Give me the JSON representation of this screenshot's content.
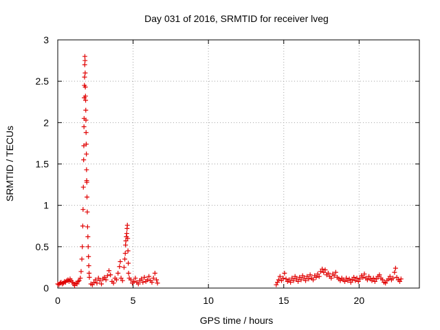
{
  "chart_data": {
    "type": "scatter",
    "title": "Day 031 of 2016, SRMTID for receiver lveg",
    "xlabel": "GPS time / hours",
    "ylabel": "SRMTID / TECUs",
    "xlim": [
      0,
      24
    ],
    "ylim": [
      0,
      3
    ],
    "xticks": [
      0,
      5,
      10,
      15,
      20
    ],
    "yticks": [
      0,
      0.5,
      1,
      1.5,
      2,
      2.5,
      3
    ],
    "ytick_labels": [
      "0",
      "0.5",
      "1",
      "1.5",
      "2",
      "2.5",
      "3"
    ],
    "grid": true,
    "marker": "+",
    "series": [
      {
        "name": "SRMTID",
        "color": "#e00000",
        "points": [
          [
            0.0,
            0.05
          ],
          [
            0.08,
            0.04
          ],
          [
            0.15,
            0.06
          ],
          [
            0.22,
            0.07
          ],
          [
            0.3,
            0.05
          ],
          [
            0.38,
            0.06
          ],
          [
            0.45,
            0.08
          ],
          [
            0.52,
            0.07
          ],
          [
            0.6,
            0.09
          ],
          [
            0.68,
            0.1
          ],
          [
            0.75,
            0.08
          ],
          [
            0.82,
            0.11
          ],
          [
            0.9,
            0.09
          ],
          [
            0.98,
            0.07
          ],
          [
            1.05,
            0.05
          ],
          [
            1.12,
            0.03
          ],
          [
            1.2,
            0.06
          ],
          [
            1.28,
            0.05
          ],
          [
            1.35,
            0.08
          ],
          [
            1.42,
            0.09
          ],
          [
            1.5,
            0.12
          ],
          [
            1.55,
            0.2
          ],
          [
            1.6,
            0.35
          ],
          [
            1.63,
            0.5
          ],
          [
            1.66,
            0.75
          ],
          [
            1.68,
            0.95
          ],
          [
            1.7,
            1.22
          ],
          [
            1.72,
            1.55
          ],
          [
            1.73,
            1.72
          ],
          [
            1.74,
            1.95
          ],
          [
            1.75,
            2.05
          ],
          [
            1.76,
            2.3
          ],
          [
            1.77,
            2.45
          ],
          [
            1.78,
            2.55
          ],
          [
            1.79,
            2.7
          ],
          [
            1.8,
            2.8
          ],
          [
            1.81,
            2.75
          ],
          [
            1.82,
            2.6
          ],
          [
            1.83,
            2.43
          ],
          [
            1.84,
            2.32
          ],
          [
            1.85,
            2.27
          ],
          [
            1.86,
            2.15
          ],
          [
            1.87,
            2.03
          ],
          [
            1.88,
            1.88
          ],
          [
            1.89,
            1.74
          ],
          [
            1.9,
            1.62
          ],
          [
            1.91,
            1.43
          ],
          [
            1.92,
            1.3
          ],
          [
            1.93,
            1.28
          ],
          [
            1.94,
            1.1
          ],
          [
            1.96,
            0.92
          ],
          [
            1.98,
            0.74
          ],
          [
            2.0,
            0.62
          ],
          [
            2.02,
            0.5
          ],
          [
            2.04,
            0.38
          ],
          [
            2.06,
            0.27
          ],
          [
            2.08,
            0.18
          ],
          [
            2.1,
            0.13
          ],
          [
            2.2,
            0.05
          ],
          [
            2.3,
            0.04
          ],
          [
            2.4,
            0.07
          ],
          [
            2.5,
            0.1
          ],
          [
            2.6,
            0.06
          ],
          [
            2.7,
            0.12
          ],
          [
            2.8,
            0.09
          ],
          [
            2.9,
            0.05
          ],
          [
            3.0,
            0.11
          ],
          [
            3.1,
            0.13
          ],
          [
            3.2,
            0.1
          ],
          [
            3.3,
            0.15
          ],
          [
            3.4,
            0.21
          ],
          [
            3.5,
            0.16
          ],
          [
            3.6,
            0.08
          ],
          [
            3.7,
            0.06
          ],
          [
            3.8,
            0.12
          ],
          [
            3.9,
            0.1
          ],
          [
            4.0,
            0.18
          ],
          [
            4.1,
            0.26
          ],
          [
            4.15,
            0.32
          ],
          [
            4.2,
            0.12
          ],
          [
            4.3,
            0.09
          ],
          [
            4.4,
            0.25
          ],
          [
            4.45,
            0.35
          ],
          [
            4.48,
            0.42
          ],
          [
            4.5,
            0.52
          ],
          [
            4.52,
            0.57
          ],
          [
            4.55,
            0.62
          ],
          [
            4.58,
            0.66
          ],
          [
            4.6,
            0.72
          ],
          [
            4.62,
            0.76
          ],
          [
            4.64,
            0.6
          ],
          [
            4.66,
            0.45
          ],
          [
            4.68,
            0.3
          ],
          [
            4.7,
            0.18
          ],
          [
            4.75,
            0.12
          ],
          [
            4.85,
            0.1
          ],
          [
            4.95,
            0.06
          ],
          [
            5.05,
            0.08
          ],
          [
            5.15,
            0.12
          ],
          [
            5.25,
            0.07
          ],
          [
            5.35,
            0.05
          ],
          [
            5.45,
            0.09
          ],
          [
            5.55,
            0.11
          ],
          [
            5.65,
            0.07
          ],
          [
            5.75,
            0.13
          ],
          [
            5.85,
            0.08
          ],
          [
            5.95,
            0.1
          ],
          [
            6.05,
            0.14
          ],
          [
            6.15,
            0.09
          ],
          [
            6.25,
            0.07
          ],
          [
            6.35,
            0.12
          ],
          [
            6.45,
            0.18
          ],
          [
            6.55,
            0.1
          ],
          [
            6.62,
            0.06
          ],
          [
            14.5,
            0.04
          ],
          [
            14.58,
            0.07
          ],
          [
            14.66,
            0.1
          ],
          [
            14.75,
            0.14
          ],
          [
            14.85,
            0.09
          ],
          [
            14.95,
            0.12
          ],
          [
            15.05,
            0.18
          ],
          [
            15.15,
            0.11
          ],
          [
            15.25,
            0.08
          ],
          [
            15.35,
            0.1
          ],
          [
            15.45,
            0.07
          ],
          [
            15.55,
            0.12
          ],
          [
            15.65,
            0.09
          ],
          [
            15.75,
            0.14
          ],
          [
            15.85,
            0.11
          ],
          [
            15.95,
            0.08
          ],
          [
            16.05,
            0.13
          ],
          [
            16.15,
            0.1
          ],
          [
            16.25,
            0.15
          ],
          [
            16.35,
            0.12
          ],
          [
            16.45,
            0.09
          ],
          [
            16.55,
            0.14
          ],
          [
            16.65,
            0.11
          ],
          [
            16.75,
            0.16
          ],
          [
            16.85,
            0.12
          ],
          [
            16.95,
            0.1
          ],
          [
            17.05,
            0.15
          ],
          [
            17.15,
            0.13
          ],
          [
            17.25,
            0.17
          ],
          [
            17.35,
            0.14
          ],
          [
            17.45,
            0.2
          ],
          [
            17.55,
            0.23
          ],
          [
            17.65,
            0.19
          ],
          [
            17.75,
            0.22
          ],
          [
            17.85,
            0.16
          ],
          [
            17.95,
            0.18
          ],
          [
            18.05,
            0.14
          ],
          [
            18.15,
            0.12
          ],
          [
            18.25,
            0.17
          ],
          [
            18.35,
            0.15
          ],
          [
            18.45,
            0.19
          ],
          [
            18.55,
            0.13
          ],
          [
            18.65,
            0.11
          ],
          [
            18.75,
            0.09
          ],
          [
            18.85,
            0.12
          ],
          [
            18.95,
            0.1
          ],
          [
            19.05,
            0.08
          ],
          [
            19.15,
            0.12
          ],
          [
            19.25,
            0.09
          ],
          [
            19.35,
            0.11
          ],
          [
            19.45,
            0.07
          ],
          [
            19.55,
            0.1
          ],
          [
            19.65,
            0.13
          ],
          [
            19.75,
            0.09
          ],
          [
            19.85,
            0.12
          ],
          [
            19.95,
            0.08
          ],
          [
            20.05,
            0.11
          ],
          [
            20.15,
            0.15
          ],
          [
            20.25,
            0.13
          ],
          [
            20.35,
            0.17
          ],
          [
            20.45,
            0.12
          ],
          [
            20.55,
            0.1
          ],
          [
            20.65,
            0.14
          ],
          [
            20.75,
            0.11
          ],
          [
            20.85,
            0.09
          ],
          [
            20.95,
            0.12
          ],
          [
            21.05,
            0.08
          ],
          [
            21.15,
            0.11
          ],
          [
            21.25,
            0.14
          ],
          [
            21.35,
            0.16
          ],
          [
            21.45,
            0.12
          ],
          [
            21.55,
            0.1
          ],
          [
            21.65,
            0.07
          ],
          [
            21.75,
            0.06
          ],
          [
            21.85,
            0.09
          ],
          [
            21.95,
            0.11
          ],
          [
            22.05,
            0.14
          ],
          [
            22.15,
            0.1
          ],
          [
            22.25,
            0.12
          ],
          [
            22.35,
            0.19
          ],
          [
            22.42,
            0.24
          ],
          [
            22.5,
            0.13
          ],
          [
            22.6,
            0.1
          ],
          [
            22.7,
            0.08
          ],
          [
            22.78,
            0.11
          ]
        ]
      }
    ]
  }
}
